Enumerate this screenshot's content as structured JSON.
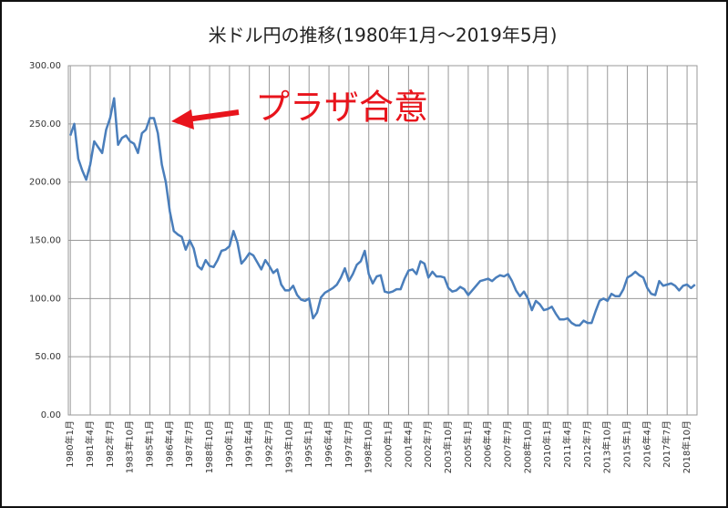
{
  "chart_data": {
    "type": "line",
    "title": "米ドル円の推移(1980年1月～2019年5月)",
    "annotation": "プラザ合意",
    "categories": [
      "1980年1月",
      null,
      null,
      null,
      null,
      "1981年4月",
      null,
      null,
      null,
      null,
      "1982年7月",
      null,
      null,
      null,
      null,
      "1983年10月",
      null,
      null,
      null,
      null,
      "1985年1月",
      null,
      null,
      null,
      null,
      "1986年4月",
      null,
      null,
      null,
      null,
      "1987年7月",
      null,
      null,
      null,
      null,
      "1988年10月",
      null,
      null,
      null,
      null,
      "1990年1月",
      null,
      null,
      null,
      null,
      "1991年4月",
      null,
      null,
      null,
      null,
      "1992年7月",
      null,
      null,
      null,
      null,
      "1993年10月",
      null,
      null,
      null,
      null,
      "1995年1月",
      null,
      null,
      null,
      null,
      "1996年4月",
      null,
      null,
      null,
      null,
      "1997年7月",
      null,
      null,
      null,
      null,
      "1998年10月",
      null,
      null,
      null,
      null,
      "2000年1月",
      null,
      null,
      null,
      null,
      "2001年4月",
      null,
      null,
      null,
      null,
      "2002年7月",
      null,
      null,
      null,
      null,
      "2003年10月",
      null,
      null,
      null,
      null,
      "2005年1月",
      null,
      null,
      null,
      null,
      "2006年4月",
      null,
      null,
      null,
      null,
      "2007年7月",
      null,
      null,
      null,
      null,
      "2008年10月",
      null,
      null,
      null,
      null,
      "2010年1月",
      null,
      null,
      null,
      null,
      "2011年4月",
      null,
      null,
      null,
      null,
      "2012年7月",
      null,
      null,
      null,
      null,
      "2013年10月",
      null,
      null,
      null,
      null,
      "2015年1月",
      null,
      null,
      null,
      null,
      "2016年4月",
      null,
      null,
      null,
      null,
      "2017年7月",
      null,
      null,
      null,
      null,
      "2018年10月",
      null,
      null
    ],
    "series": [
      {
        "color": "#4a7ebb",
        "values": [
          240,
          250,
          220,
          210,
          202,
          215,
          235,
          230,
          225,
          245,
          255,
          272,
          232,
          238,
          240,
          235,
          233,
          225,
          242,
          245,
          255,
          255,
          242,
          215,
          200,
          175,
          158,
          155,
          153,
          142,
          150,
          143,
          128,
          125,
          133,
          128,
          127,
          133,
          141,
          142,
          145,
          158,
          148,
          130,
          134,
          139,
          137,
          131,
          125,
          133,
          128,
          122,
          125,
          112,
          107,
          107,
          111,
          103,
          99,
          98,
          100,
          83,
          88,
          101,
          105,
          107,
          109,
          112,
          118,
          126,
          115,
          121,
          129,
          132,
          141,
          121,
          113,
          119,
          120,
          106,
          105,
          106,
          108,
          108,
          117,
          124,
          125,
          121,
          132,
          130,
          118,
          123,
          119,
          119,
          118,
          109,
          106,
          107,
          110,
          108,
          103,
          107,
          111,
          115,
          116,
          117,
          115,
          118,
          120,
          119,
          121,
          115,
          107,
          102,
          106,
          100,
          90,
          98,
          95,
          90,
          91,
          93,
          87,
          82,
          82,
          83,
          79,
          77,
          77,
          81,
          79,
          79,
          89,
          98,
          100,
          98,
          104,
          102,
          102,
          108,
          118,
          120,
          123,
          120,
          118,
          109,
          104,
          103,
          115,
          111,
          112,
          113,
          111,
          107,
          111,
          112,
          109,
          112
        ]
      }
    ],
    "ylim": [
      0,
      300
    ],
    "yticks": [
      {
        "value": 0,
        "label": "0.00"
      },
      {
        "value": 50,
        "label": "50.00"
      },
      {
        "value": 100,
        "label": "100.00"
      },
      {
        "value": 150,
        "label": "150.00"
      },
      {
        "value": 200,
        "label": "200.00"
      },
      {
        "value": 250,
        "label": "250.00"
      },
      {
        "value": 300,
        "label": "300.00"
      }
    ],
    "grid": true
  }
}
